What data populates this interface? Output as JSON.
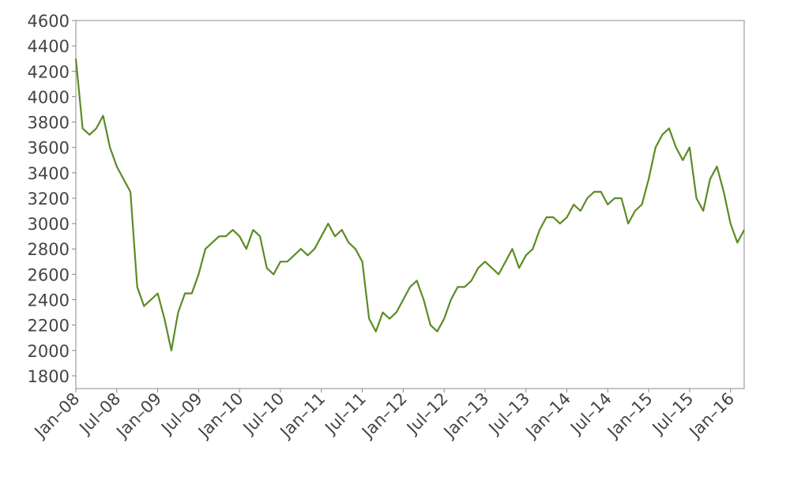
{
  "chart_data": {
    "type": "line",
    "color": "#5b8c23",
    "x": [
      "2008-01",
      "2008-02",
      "2008-03",
      "2008-04",
      "2008-05",
      "2008-06",
      "2008-07",
      "2008-08",
      "2008-09",
      "2008-10",
      "2008-11",
      "2008-12",
      "2009-01",
      "2009-02",
      "2009-03",
      "2009-04",
      "2009-05",
      "2009-06",
      "2009-07",
      "2009-08",
      "2009-09",
      "2009-10",
      "2009-11",
      "2009-12",
      "2010-01",
      "2010-02",
      "2010-03",
      "2010-04",
      "2010-05",
      "2010-06",
      "2010-07",
      "2010-08",
      "2010-09",
      "2010-10",
      "2010-11",
      "2010-12",
      "2011-01",
      "2011-02",
      "2011-03",
      "2011-04",
      "2011-05",
      "2011-06",
      "2011-07",
      "2011-08",
      "2011-09",
      "2011-10",
      "2011-11",
      "2011-12",
      "2012-01",
      "2012-02",
      "2012-03",
      "2012-04",
      "2012-05",
      "2012-06",
      "2012-07",
      "2012-08",
      "2012-09",
      "2012-10",
      "2012-11",
      "2012-12",
      "2013-01",
      "2013-02",
      "2013-03",
      "2013-04",
      "2013-05",
      "2013-06",
      "2013-07",
      "2013-08",
      "2013-09",
      "2013-10",
      "2013-11",
      "2013-12",
      "2014-01",
      "2014-02",
      "2014-03",
      "2014-04",
      "2014-05",
      "2014-06",
      "2014-07",
      "2014-08",
      "2014-09",
      "2014-10",
      "2014-11",
      "2014-12",
      "2015-01",
      "2015-02",
      "2015-03",
      "2015-04",
      "2015-05",
      "2015-06",
      "2015-07",
      "2015-08",
      "2015-09",
      "2015-10",
      "2015-11",
      "2015-12",
      "2016-01",
      "2016-02",
      "2016-03"
    ],
    "values": [
      4300,
      3750,
      3700,
      3750,
      3850,
      3600,
      3450,
      3350,
      3250,
      2500,
      2350,
      2400,
      2450,
      2250,
      2000,
      2300,
      2450,
      2450,
      2600,
      2800,
      2850,
      2900,
      2900,
      2950,
      2900,
      2800,
      2950,
      2900,
      2650,
      2600,
      2700,
      2700,
      2750,
      2800,
      2750,
      2800,
      2900,
      3000,
      2900,
      2950,
      2850,
      2800,
      2700,
      2250,
      2150,
      2300,
      2250,
      2300,
      2400,
      2500,
      2550,
      2400,
      2200,
      2150,
      2250,
      2400,
      2500,
      2500,
      2550,
      2650,
      2700,
      2650,
      2600,
      2700,
      2800,
      2650,
      2750,
      2800,
      2950,
      3050,
      3050,
      3000,
      3050,
      3150,
      3100,
      3200,
      3250,
      3250,
      3150,
      3200,
      3200,
      3000,
      3100,
      3150,
      3350,
      3600,
      3700,
      3750,
      3600,
      3500,
      3600,
      3200,
      3100,
      3350,
      3450,
      3250,
      3000,
      2850,
      2950
    ],
    "xlim": [
      "2008-01",
      "2016-03"
    ],
    "xticks": [
      {
        "value": "2008-01",
        "label": "Jan–08"
      },
      {
        "value": "2008-07",
        "label": "Jul–08"
      },
      {
        "value": "2009-01",
        "label": "Jan–09"
      },
      {
        "value": "2009-07",
        "label": "Jul–09"
      },
      {
        "value": "2010-01",
        "label": "Jan–10"
      },
      {
        "value": "2010-07",
        "label": "Jul–10"
      },
      {
        "value": "2011-01",
        "label": "Jan–11"
      },
      {
        "value": "2011-07",
        "label": "Jul–11"
      },
      {
        "value": "2012-01",
        "label": "Jan–12"
      },
      {
        "value": "2012-07",
        "label": "Jul–12"
      },
      {
        "value": "2013-01",
        "label": "Jan–13"
      },
      {
        "value": "2013-07",
        "label": "Jul–13"
      },
      {
        "value": "2014-01",
        "label": "Jan–14"
      },
      {
        "value": "2014-07",
        "label": "Jul–14"
      },
      {
        "value": "2015-01",
        "label": "Jan–15"
      },
      {
        "value": "2015-07",
        "label": "Jul–15"
      },
      {
        "value": "2016-01",
        "label": "Jan–16"
      }
    ],
    "ylim": [
      1700,
      4600
    ],
    "yticks": [
      1800,
      2000,
      2200,
      2400,
      2600,
      2800,
      3000,
      3200,
      3400,
      3600,
      3800,
      4000,
      4200,
      4400,
      4600
    ]
  }
}
